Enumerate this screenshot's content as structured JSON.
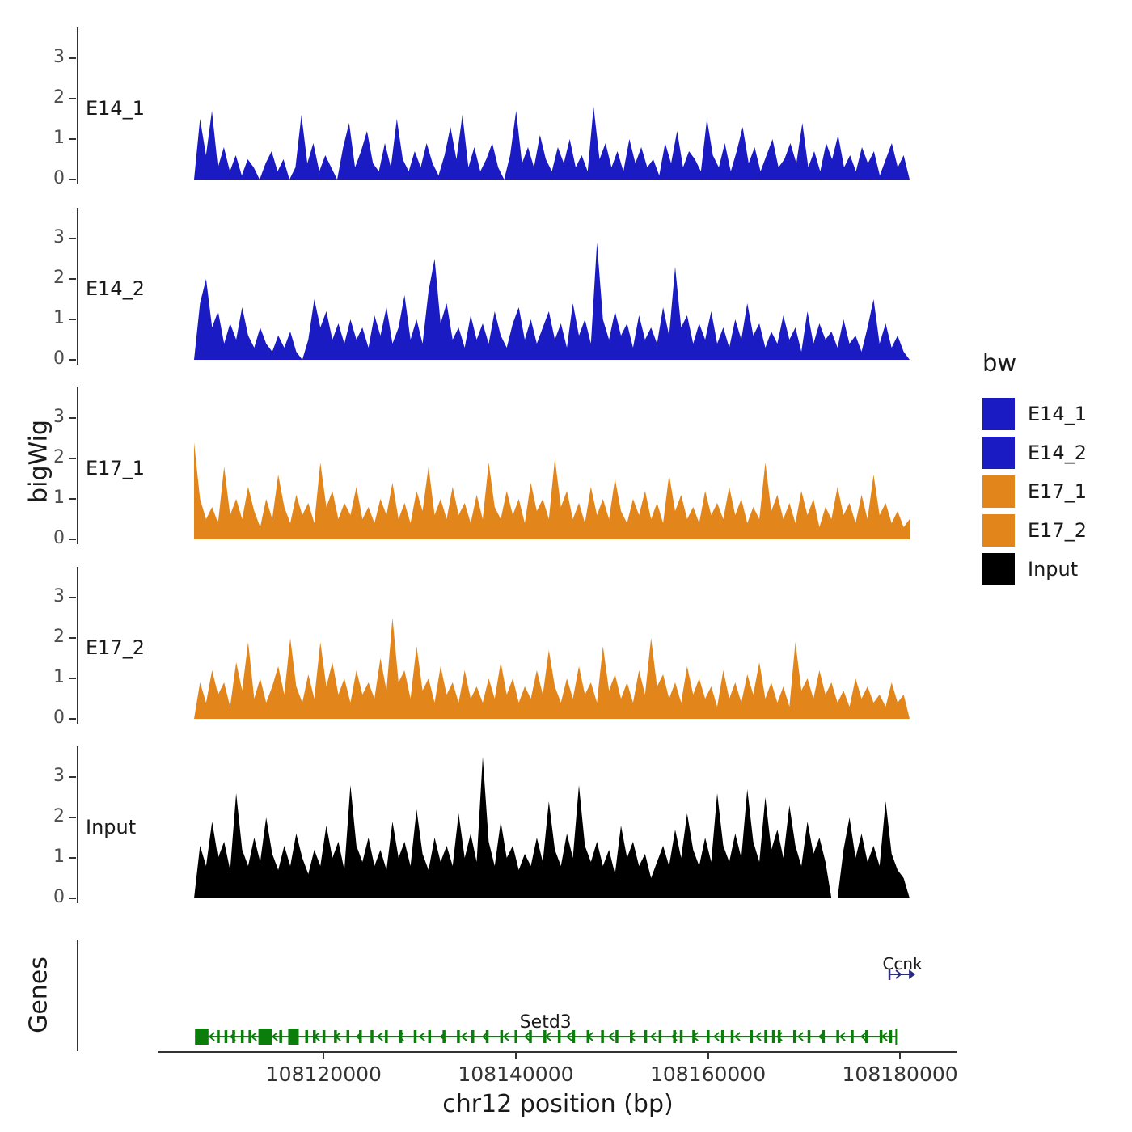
{
  "chart_data": {
    "type": "area",
    "title": "",
    "xlabel": "chr12 position (bp)",
    "ylabel": "bigWig",
    "x_range_bp": [
      108106500,
      108181000
    ],
    "x_ticks": [
      {
        "bp": 108120000,
        "label": "108120000"
      },
      {
        "bp": 108140000,
        "label": "108140000"
      },
      {
        "bp": 108160000,
        "label": "108160000"
      },
      {
        "bp": 108180000,
        "label": "108180000"
      }
    ],
    "y_ticks": [
      0,
      1,
      2,
      3
    ],
    "ylim": [
      0,
      3.6
    ],
    "grid": false,
    "legend": {
      "title": "bw",
      "position": "right",
      "entries": [
        {
          "label": "E14_1",
          "color": "#1b1bc4"
        },
        {
          "label": "E14_2",
          "color": "#1b1bc4"
        },
        {
          "label": "E17_1",
          "color": "#e2861c"
        },
        {
          "label": "E17_2",
          "color": "#e2861c"
        },
        {
          "label": "Input",
          "color": "#000000"
        }
      ]
    },
    "tracks": [
      {
        "name": "E14_1",
        "color": "#1b1bc4",
        "values": [
          0,
          1.5,
          0.6,
          1.7,
          0.3,
          0.8,
          0.2,
          0.6,
          0.1,
          0.5,
          0.3,
          0,
          0.4,
          0.7,
          0.2,
          0.5,
          0,
          0.3,
          1.6,
          0.4,
          0.9,
          0.2,
          0.6,
          0.3,
          0,
          0.8,
          1.4,
          0.3,
          0.7,
          1.2,
          0.4,
          0.2,
          0.9,
          0.3,
          1.5,
          0.5,
          0.2,
          0.7,
          0.3,
          0.9,
          0.4,
          0.1,
          0.6,
          1.3,
          0.5,
          1.6,
          0.3,
          0.8,
          0.2,
          0.5,
          0.9,
          0.3,
          0,
          0.6,
          1.7,
          0.4,
          0.8,
          0.3,
          1.1,
          0.5,
          0.2,
          0.8,
          0.4,
          1.0,
          0.3,
          0.6,
          0.2,
          1.8,
          0.5,
          0.9,
          0.3,
          0.7,
          0.2,
          1.0,
          0.4,
          0.8,
          0.3,
          0.5,
          0.1,
          0.9,
          0.4,
          1.2,
          0.3,
          0.7,
          0.5,
          0.2,
          1.5,
          0.6,
          0.3,
          0.9,
          0.2,
          0.7,
          1.3,
          0.4,
          0.8,
          0.2,
          0.6,
          1.0,
          0.3,
          0.5,
          0.9,
          0.4,
          1.4,
          0.3,
          0.7,
          0.2,
          0.9,
          0.5,
          1.1,
          0.3,
          0.6,
          0.2,
          0.8,
          0.4,
          0.7,
          0.1,
          0.5,
          0.9,
          0.3,
          0.6,
          0
        ]
      },
      {
        "name": "E14_2",
        "color": "#1b1bc4",
        "values": [
          0,
          1.4,
          2.0,
          0.8,
          1.2,
          0.4,
          0.9,
          0.5,
          1.3,
          0.6,
          0.3,
          0.8,
          0.4,
          0.2,
          0.6,
          0.3,
          0.7,
          0.2,
          0,
          0.5,
          1.5,
          0.8,
          1.2,
          0.5,
          0.9,
          0.4,
          1.0,
          0.5,
          0.8,
          0.3,
          1.1,
          0.6,
          1.3,
          0.4,
          0.8,
          1.6,
          0.5,
          1.0,
          0.4,
          1.7,
          2.5,
          0.9,
          1.4,
          0.5,
          0.8,
          0.3,
          1.1,
          0.5,
          0.9,
          0.4,
          1.2,
          0.6,
          0.3,
          0.9,
          1.3,
          0.5,
          1.0,
          0.4,
          0.8,
          1.2,
          0.5,
          0.9,
          0.3,
          1.4,
          0.6,
          1.0,
          0.4,
          2.9,
          1.0,
          0.5,
          1.2,
          0.6,
          0.9,
          0.3,
          1.1,
          0.5,
          0.8,
          0.4,
          1.3,
          0.6,
          2.3,
          0.8,
          1.1,
          0.4,
          0.9,
          0.5,
          1.2,
          0.4,
          0.8,
          0.3,
          1.0,
          0.5,
          1.4,
          0.6,
          0.9,
          0.3,
          0.7,
          0.4,
          1.1,
          0.5,
          0.8,
          0.2,
          1.2,
          0.4,
          0.9,
          0.5,
          0.7,
          0.3,
          1.0,
          0.4,
          0.6,
          0.2,
          0.8,
          1.5,
          0.4,
          0.9,
          0.3,
          0.6,
          0.2,
          0
        ]
      },
      {
        "name": "E17_1",
        "color": "#e2861c",
        "values": [
          2.4,
          1.0,
          0.5,
          0.8,
          0.4,
          1.8,
          0.6,
          1.0,
          0.5,
          1.3,
          0.7,
          0.3,
          1.0,
          0.5,
          1.6,
          0.8,
          0.4,
          1.1,
          0.6,
          0.9,
          0.4,
          1.9,
          0.8,
          1.2,
          0.5,
          0.9,
          0.6,
          1.3,
          0.5,
          0.8,
          0.4,
          1.0,
          0.6,
          1.4,
          0.5,
          0.9,
          0.4,
          1.2,
          0.7,
          1.8,
          0.6,
          1.0,
          0.5,
          1.3,
          0.6,
          0.9,
          0.4,
          1.1,
          0.5,
          1.9,
          0.8,
          0.5,
          1.2,
          0.6,
          1.0,
          0.4,
          1.4,
          0.7,
          1.0,
          0.5,
          2.0,
          0.8,
          1.2,
          0.5,
          0.9,
          0.4,
          1.3,
          0.6,
          1.0,
          0.5,
          1.5,
          0.7,
          0.4,
          1.0,
          0.6,
          1.2,
          0.5,
          0.9,
          0.4,
          1.6,
          0.7,
          1.1,
          0.5,
          0.8,
          0.4,
          1.2,
          0.6,
          0.9,
          0.5,
          1.3,
          0.6,
          1.0,
          0.4,
          0.8,
          0.5,
          1.9,
          0.7,
          1.1,
          0.5,
          0.9,
          0.4,
          1.2,
          0.6,
          1.0,
          0.3,
          0.8,
          0.5,
          1.3,
          0.6,
          0.9,
          0.4,
          1.1,
          0.5,
          1.6,
          0.6,
          0.9,
          0.4,
          0.7,
          0.3,
          0.5
        ]
      },
      {
        "name": "E17_2",
        "color": "#e2861c",
        "values": [
          0,
          0.9,
          0.4,
          1.2,
          0.6,
          0.9,
          0.3,
          1.4,
          0.7,
          1.9,
          0.5,
          1.0,
          0.4,
          0.8,
          1.3,
          0.6,
          2.0,
          0.8,
          0.4,
          1.1,
          0.5,
          1.9,
          0.8,
          1.4,
          0.6,
          1.0,
          0.4,
          1.2,
          0.6,
          0.9,
          0.5,
          1.5,
          0.7,
          2.5,
          0.9,
          1.2,
          0.5,
          1.8,
          0.7,
          1.0,
          0.4,
          1.3,
          0.6,
          0.9,
          0.4,
          1.2,
          0.5,
          0.8,
          0.4,
          1.0,
          0.5,
          1.4,
          0.6,
          1.0,
          0.4,
          0.8,
          0.5,
          1.2,
          0.6,
          1.7,
          0.8,
          0.4,
          1.0,
          0.5,
          1.3,
          0.6,
          0.9,
          0.4,
          1.8,
          0.7,
          1.1,
          0.5,
          0.9,
          0.4,
          1.2,
          0.6,
          2.0,
          0.8,
          1.1,
          0.5,
          0.9,
          0.4,
          1.3,
          0.6,
          1.0,
          0.5,
          0.8,
          0.3,
          1.2,
          0.5,
          0.9,
          0.4,
          1.1,
          0.6,
          1.4,
          0.5,
          0.9,
          0.4,
          0.8,
          0.3,
          1.9,
          0.7,
          1.0,
          0.5,
          1.2,
          0.6,
          0.9,
          0.4,
          0.7,
          0.3,
          1.0,
          0.5,
          0.8,
          0.4,
          0.6,
          0.3,
          0.9,
          0.4,
          0.6,
          0
        ]
      },
      {
        "name": "Input",
        "color": "#000000",
        "values": [
          0,
          1.3,
          0.8,
          1.9,
          1.0,
          1.4,
          0.7,
          2.6,
          1.2,
          0.8,
          1.5,
          0.9,
          2.0,
          1.1,
          0.7,
          1.3,
          0.8,
          1.6,
          1.0,
          0.6,
          1.2,
          0.8,
          1.8,
          1.0,
          1.4,
          0.7,
          2.8,
          1.3,
          0.9,
          1.5,
          0.8,
          1.2,
          0.7,
          1.9,
          1.0,
          1.4,
          0.8,
          2.2,
          1.1,
          0.7,
          1.5,
          0.9,
          1.3,
          0.8,
          2.1,
          1.0,
          1.6,
          0.9,
          3.5,
          1.4,
          0.8,
          1.9,
          1.0,
          1.3,
          0.7,
          1.1,
          0.8,
          1.5,
          0.9,
          2.4,
          1.2,
          0.8,
          1.6,
          1.0,
          2.8,
          1.3,
          0.9,
          1.4,
          0.8,
          1.2,
          0.6,
          1.8,
          1.0,
          1.4,
          0.8,
          1.1,
          0.5,
          0.9,
          1.3,
          0.8,
          1.7,
          1.0,
          2.1,
          1.2,
          0.8,
          1.5,
          0.9,
          2.6,
          1.3,
          0.9,
          1.6,
          1.0,
          2.7,
          1.4,
          0.9,
          2.5,
          1.2,
          1.7,
          1.0,
          2.3,
          1.3,
          0.8,
          1.9,
          1.1,
          1.5,
          0.9,
          0,
          0,
          1.2,
          2.0,
          1.0,
          1.6,
          0.9,
          1.3,
          0.8,
          2.4,
          1.1,
          0.7,
          0.5,
          0
        ]
      }
    ],
    "genes_panel": {
      "label": "Genes",
      "genes": [
        {
          "name": "Setd3",
          "color": "#0a7d0a",
          "strand": "-",
          "start_bp": 108106600,
          "end_bp": 108179600,
          "exons_large_bp": [
            [
              108106600,
              108108000
            ],
            [
              108113200,
              108114600
            ],
            [
              108116300,
              108117400
            ]
          ],
          "exons_small_bp": [
            108109000,
            108109800,
            108110600,
            108111500,
            108112300,
            108115500,
            108118200,
            108119000,
            108120000,
            108121200,
            108122500,
            108123800,
            108125000,
            108126500,
            108128000,
            108129500,
            108131000,
            108132500,
            108134000,
            108135500,
            108137000,
            108138500,
            108140000,
            108141500,
            108143000,
            108144500,
            108146000,
            108147500,
            108149000,
            108150500,
            108152000,
            108153500,
            108155000,
            108156500,
            108157200,
            108158500,
            108160000,
            108161500,
            108162500,
            108164500,
            108166000,
            108166800,
            108167400,
            108169000,
            108170500,
            108172000,
            108173500,
            108175000,
            108176500,
            108178000,
            108179000
          ]
        },
        {
          "name": "Ccnk",
          "color": "#2b2b80",
          "strand": "+",
          "start_bp": 108178900,
          "end_bp": 108181600
        }
      ]
    }
  }
}
